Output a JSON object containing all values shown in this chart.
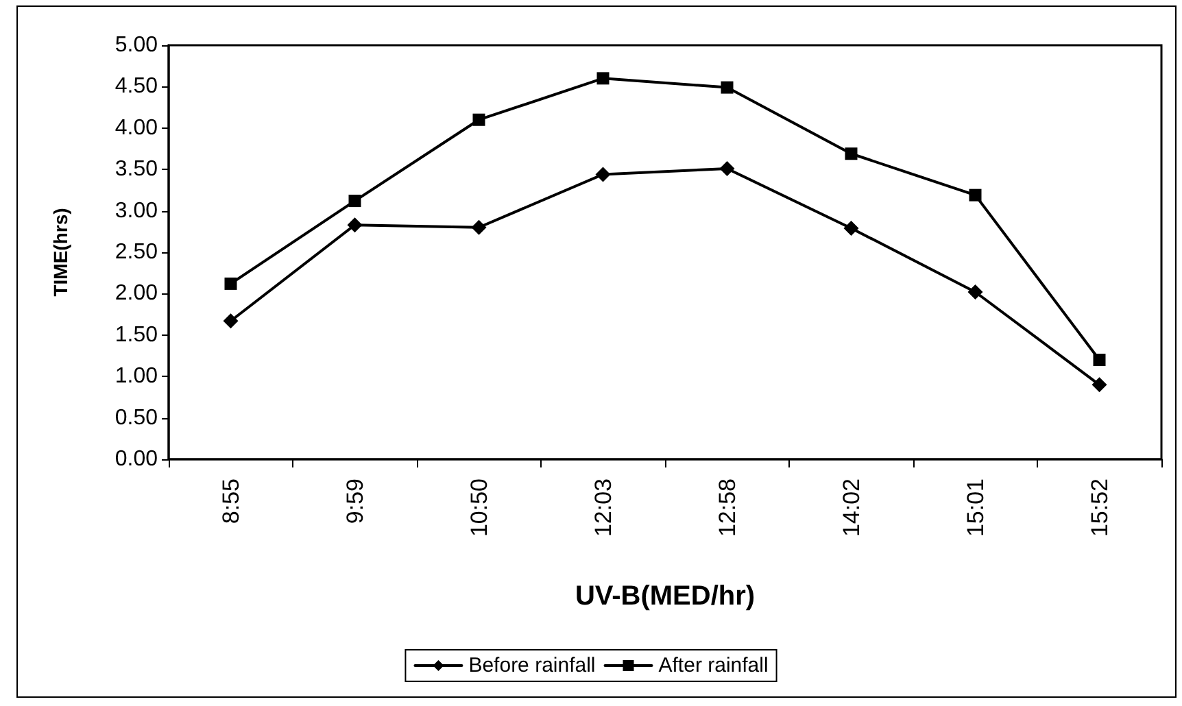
{
  "chart_data": {
    "type": "line",
    "xlabel": "UV-B(MED/hr)",
    "ylabel": "TIME(hrs)",
    "categories": [
      "8:55",
      "9:59",
      "10:50",
      "12:03",
      "12:58",
      "14:02",
      "15:01",
      "15:52"
    ],
    "series": [
      {
        "name": "Before rainfall",
        "color": "#000000",
        "marker": "diamond",
        "values": [
          1.67,
          2.83,
          2.8,
          3.44,
          3.51,
          2.79,
          2.02,
          0.9
        ]
      },
      {
        "name": "After rainfall",
        "color": "#000000",
        "marker": "square",
        "values": [
          2.12,
          3.12,
          4.1,
          4.6,
          4.49,
          3.69,
          3.19,
          1.2
        ]
      }
    ],
    "ylim": [
      0,
      5
    ],
    "yticks": [
      {
        "value": 0,
        "label": "0.00"
      },
      {
        "value": 0.5,
        "label": "0.50"
      },
      {
        "value": 1,
        "label": "1.00"
      },
      {
        "value": 1.5,
        "label": "1.50"
      },
      {
        "value": 2,
        "label": "2.00"
      },
      {
        "value": 2.5,
        "label": "2.50"
      },
      {
        "value": 3,
        "label": "3.00"
      },
      {
        "value": 3.5,
        "label": "3.50"
      },
      {
        "value": 4,
        "label": "4.00"
      },
      {
        "value": 4.5,
        "label": "4.50"
      },
      {
        "value": 5,
        "label": "5.00"
      }
    ],
    "grid": false,
    "legend": "bottom",
    "line_style": "solid"
  }
}
